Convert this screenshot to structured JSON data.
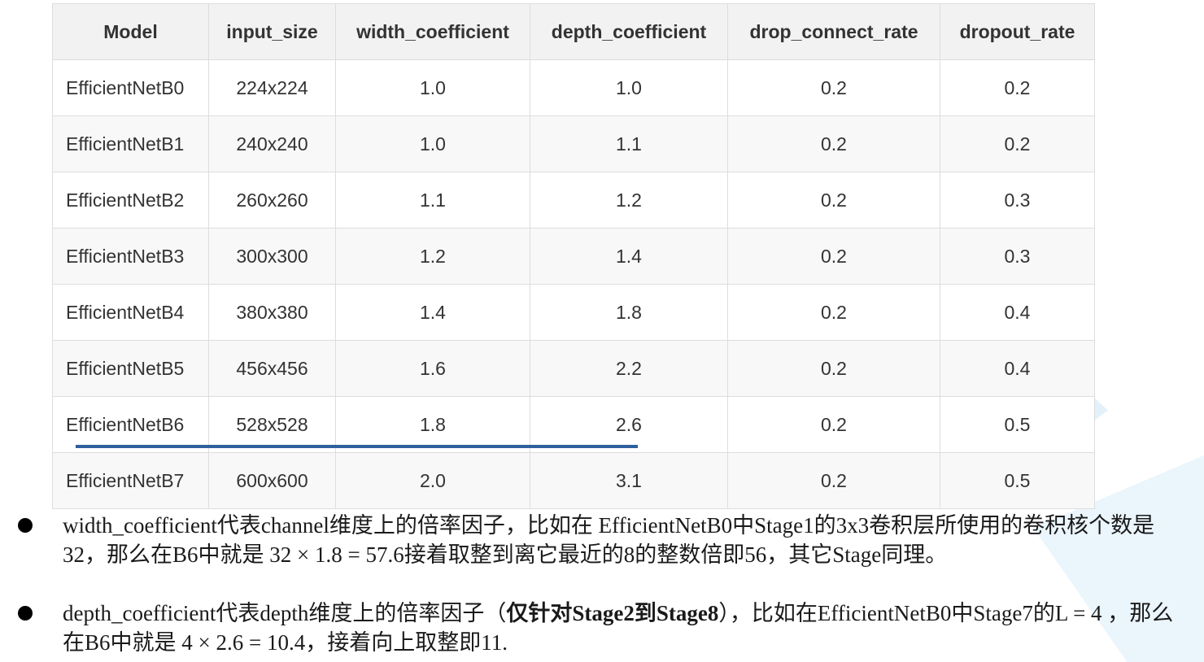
{
  "table": {
    "headers": [
      "Model",
      "input_size",
      "width_coefficient",
      "depth_coefficient",
      "drop_connect_rate",
      "dropout_rate"
    ],
    "rows": [
      [
        "EfficientNetB0",
        "224x224",
        "1.0",
        "1.0",
        "0.2",
        "0.2"
      ],
      [
        "EfficientNetB1",
        "240x240",
        "1.0",
        "1.1",
        "0.2",
        "0.2"
      ],
      [
        "EfficientNetB2",
        "260x260",
        "1.1",
        "1.2",
        "0.2",
        "0.3"
      ],
      [
        "EfficientNetB3",
        "300x300",
        "1.2",
        "1.4",
        "0.2",
        "0.3"
      ],
      [
        "EfficientNetB4",
        "380x380",
        "1.4",
        "1.8",
        "0.2",
        "0.4"
      ],
      [
        "EfficientNetB5",
        "456x456",
        "1.6",
        "2.2",
        "0.2",
        "0.4"
      ],
      [
        "EfficientNetB6",
        "528x528",
        "1.8",
        "2.6",
        "0.2",
        "0.5"
      ],
      [
        "EfficientNetB7",
        "600x600",
        "2.0",
        "3.1",
        "0.2",
        "0.5"
      ]
    ]
  },
  "colors": {
    "header_bg": "#f2f2f2",
    "border": "#dddddd",
    "underline": "#2e5f9e",
    "text": "#333333"
  },
  "notes": {
    "note1": {
      "icon": "bullet-icon",
      "text": "width_coefficient代表channel维度上的倍率因子，比如在 EfficientNetB0中Stage1的3x3卷积层所使用的卷积核个数是32，那么在B6中就是 32 × 1.8 = 57.6接着取整到离它最近的8的整数倍即56，其它Stage同理。"
    },
    "note2": {
      "icon": "bullet-icon",
      "before": "depth_coefficient代表depth维度上的倍率因子（",
      "bold": "仅针对Stage2到Stage8",
      "after": "），比如在EfficientNetB0中Stage7的L = 4 ，那么在B6中就是 4 × 2.6 = 10.4，接着向上取整即11."
    }
  }
}
